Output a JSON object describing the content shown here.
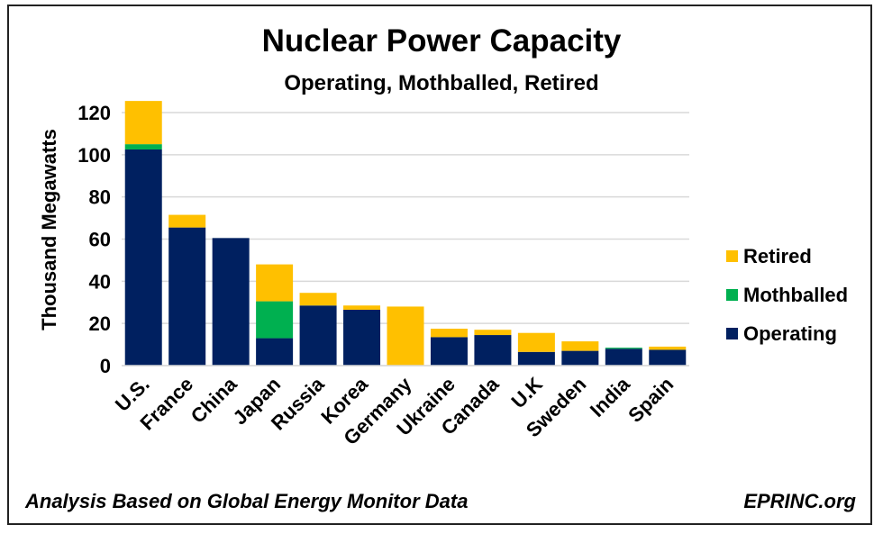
{
  "chart_data": {
    "type": "bar",
    "stacked": true,
    "title": "Nuclear Power Capacity",
    "subtitle": "Operating, Mothballed, Retired",
    "ylabel": "Thousand Megawatts",
    "xlabel": "",
    "ylim": [
      0,
      130
    ],
    "yticks": [
      0,
      20,
      40,
      60,
      80,
      100,
      120
    ],
    "grid": true,
    "legend_position": "right",
    "categories": [
      "U.S.",
      "France",
      "China",
      "Japan",
      "Russia",
      "Korea",
      "Germany",
      "Ukraine",
      "Canada",
      "U.K",
      "Sweden",
      "India",
      "Spain"
    ],
    "series": [
      {
        "name": "Operating",
        "color": "#002060",
        "values": [
          102.5,
          65.5,
          60.5,
          13,
          28.5,
          26.5,
          0,
          13.5,
          14.5,
          6.5,
          7,
          8,
          7.5
        ]
      },
      {
        "name": "Mothballed",
        "color": "#00B050",
        "values": [
          2.5,
          0,
          0,
          17.5,
          0,
          0,
          0,
          0,
          0,
          0,
          0,
          0.5,
          0
        ]
      },
      {
        "name": "Retired",
        "color": "#FFC000",
        "values": [
          20.5,
          6,
          0,
          17.5,
          6,
          2,
          28,
          4,
          2.5,
          9,
          4.5,
          0,
          1.5
        ]
      }
    ],
    "legend_order": [
      "Retired",
      "Mothballed",
      "Operating"
    ]
  },
  "footer": {
    "source": "Analysis Based on Global Energy Monitor Data",
    "brand": "EPRINC.org"
  }
}
